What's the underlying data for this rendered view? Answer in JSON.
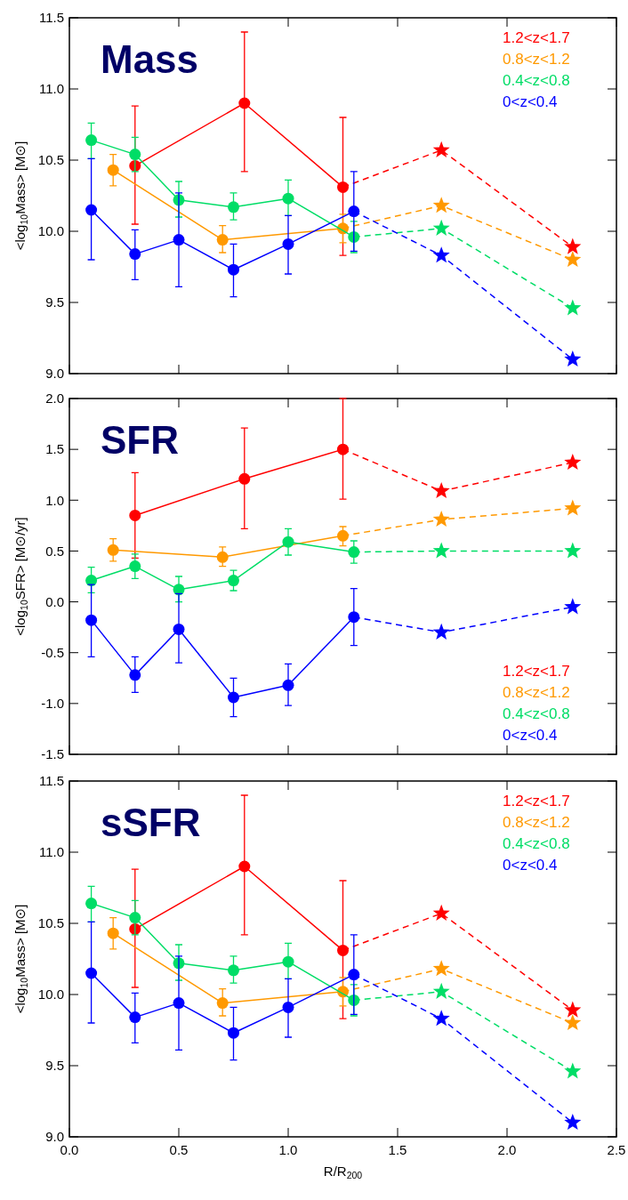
{
  "chart_data": [
    {
      "type": "line",
      "title": "Mass",
      "ylabel": "<log$_{10}$Mass> [M⊙]",
      "xlim": [
        0,
        2.5
      ],
      "xticks": [
        {
          "value": 0,
          "label": null
        },
        {
          "value": 0.5,
          "label": null
        },
        {
          "value": 1,
          "label": null
        },
        {
          "value": 1.5,
          "label": null
        },
        {
          "value": 2,
          "label": null
        },
        {
          "value": 2.5,
          "label": null
        }
      ],
      "ylim": [
        9,
        11.5
      ],
      "yticks": [
        {
          "value": 9,
          "label": "9.0"
        },
        {
          "value": 9.5,
          "label": "9.5"
        },
        {
          "value": 10,
          "label": "10.0"
        },
        {
          "value": 10.5,
          "label": "10.5"
        },
        {
          "value": 11,
          "label": "11.0"
        },
        {
          "value": 11.5,
          "label": "11.5"
        }
      ],
      "tick_labels": "y",
      "legend": "top right",
      "marker": "circle",
      "line_style": "solid",
      "grid": false,
      "series": [
        {
          "name": "1.2<z<1.7",
          "color": "#ff0000",
          "x": [
            0.3,
            0.8,
            1.25
          ],
          "values": [
            10.46,
            10.9,
            10.31
          ],
          "errors": [
            [
              10.05,
              10.88
            ],
            [
              10.42,
              11.4
            ],
            [
              9.83,
              10.8
            ]
          ]
        },
        {
          "color": "#ff0000",
          "x": [
            1.25,
            1.7,
            2.3
          ],
          "values": [
            10.31,
            10.57,
            9.89
          ],
          "marker": "star",
          "line_style": "dashed"
        },
        {
          "name": "0.8<z<1.2",
          "color": "#ff9900",
          "x": [
            0.2,
            0.7,
            1.25
          ],
          "values": [
            10.43,
            9.94,
            10.02
          ],
          "errors": [
            [
              10.32,
              10.54
            ],
            [
              9.85,
              10.04
            ],
            [
              9.92,
              10.12
            ]
          ]
        },
        {
          "color": "#ff9900",
          "x": [
            1.25,
            1.7,
            2.3
          ],
          "values": [
            10.02,
            10.18,
            9.8
          ],
          "marker": "star",
          "line_style": "dashed"
        },
        {
          "name": "0.4<z<0.8",
          "color": "#00dd66",
          "x": [
            0.1,
            0.3,
            0.5,
            0.75,
            1.0,
            1.3
          ],
          "values": [
            10.64,
            10.54,
            10.22,
            10.17,
            10.23,
            9.96
          ],
          "errors": [
            [
              10.51,
              10.76
            ],
            [
              10.42,
              10.66
            ],
            [
              10.1,
              10.35
            ],
            [
              10.08,
              10.27
            ],
            [
              10.11,
              10.36
            ],
            [
              9.85,
              10.07
            ]
          ]
        },
        {
          "color": "#00dd66",
          "x": [
            1.3,
            1.7,
            2.3
          ],
          "values": [
            9.96,
            10.02,
            9.46
          ],
          "marker": "star",
          "line_style": "dashed"
        },
        {
          "name": "0<z<0.4",
          "color": "#0000ff",
          "x": [
            0.1,
            0.3,
            0.5,
            0.75,
            1.0,
            1.3
          ],
          "values": [
            10.15,
            9.84,
            9.94,
            9.73,
            9.91,
            10.14
          ],
          "errors": [
            [
              9.8,
              10.51
            ],
            [
              9.66,
              10.01
            ],
            [
              9.61,
              10.27
            ],
            [
              9.54,
              9.91
            ],
            [
              9.7,
              10.11
            ],
            [
              9.86,
              10.42
            ]
          ]
        },
        {
          "color": "#0000ff",
          "x": [
            1.3,
            1.7,
            2.3
          ],
          "values": [
            10.14,
            9.83,
            9.1
          ],
          "marker": "star",
          "line_style": "dashed"
        }
      ]
    },
    {
      "type": "line",
      "title": "SFR",
      "ylabel": "<log$_{10}$SFR> [M⊙/yr]",
      "xlim": [
        0,
        2.5
      ],
      "xticks": [
        {
          "value": 0,
          "label": null
        },
        {
          "value": 0.5,
          "label": null
        },
        {
          "value": 1,
          "label": null
        },
        {
          "value": 1.5,
          "label": null
        },
        {
          "value": 2,
          "label": null
        },
        {
          "value": 2.5,
          "label": null
        }
      ],
      "ylim": [
        -1.5,
        2
      ],
      "yticks": [
        {
          "value": -1.5,
          "label": "-1.5"
        },
        {
          "value": -1,
          "label": "-1.0"
        },
        {
          "value": -0.5,
          "label": "-0.5"
        },
        {
          "value": 0,
          "label": "0.0"
        },
        {
          "value": 0.5,
          "label": "0.5"
        },
        {
          "value": 1,
          "label": "1.0"
        },
        {
          "value": 1.5,
          "label": "1.5"
        },
        {
          "value": 2,
          "label": "2.0"
        }
      ],
      "tick_labels": "y",
      "legend": "bottom right",
      "marker": "circle",
      "line_style": "solid",
      "grid": false,
      "series": [
        {
          "name": "1.2<z<1.7",
          "color": "#ff0000",
          "x": [
            0.3,
            0.8,
            1.25
          ],
          "values": [
            0.85,
            1.21,
            1.5
          ],
          "errors": [
            [
              0.43,
              1.27
            ],
            [
              0.72,
              1.71
            ],
            [
              1.01,
              2.0
            ]
          ]
        },
        {
          "color": "#ff0000",
          "x": [
            1.25,
            1.7,
            2.3
          ],
          "values": [
            1.5,
            1.09,
            1.37
          ],
          "marker": "star",
          "line_style": "dashed"
        },
        {
          "name": "0.8<z<1.2",
          "color": "#ff9900",
          "x": [
            0.2,
            0.7,
            1.25
          ],
          "values": [
            0.51,
            0.44,
            0.65
          ],
          "errors": [
            [
              0.4,
              0.62
            ],
            [
              0.35,
              0.54
            ],
            [
              0.55,
              0.74
            ]
          ]
        },
        {
          "color": "#ff9900",
          "x": [
            1.25,
            1.7,
            2.3
          ],
          "values": [
            0.65,
            0.81,
            0.92
          ],
          "marker": "star",
          "line_style": "dashed"
        },
        {
          "name": "0.4<z<0.8",
          "color": "#00dd66",
          "x": [
            0.1,
            0.3,
            0.5,
            0.75,
            1.0,
            1.3
          ],
          "values": [
            0.21,
            0.35,
            0.12,
            0.21,
            0.59,
            0.49
          ],
          "errors": [
            [
              0.09,
              0.34
            ],
            [
              0.23,
              0.47
            ],
            [
              0.0,
              0.25
            ],
            [
              0.11,
              0.31
            ],
            [
              0.46,
              0.72
            ],
            [
              0.38,
              0.6
            ]
          ]
        },
        {
          "color": "#00dd66",
          "x": [
            1.3,
            1.7,
            2.3
          ],
          "values": [
            0.49,
            0.5,
            0.5
          ],
          "marker": "star",
          "line_style": "dashed"
        },
        {
          "name": "0<z<0.4",
          "color": "#0000ff",
          "x": [
            0.1,
            0.3,
            0.5,
            0.75,
            1.0,
            1.3
          ],
          "values": [
            -0.18,
            -0.72,
            -0.27,
            -0.94,
            -0.82,
            -0.15
          ],
          "errors": [
            [
              -0.54,
              0.17
            ],
            [
              -0.89,
              -0.54
            ],
            [
              -0.6,
              0.08
            ],
            [
              -1.13,
              -0.75
            ],
            [
              -1.02,
              -0.61
            ],
            [
              -0.43,
              0.13
            ]
          ]
        },
        {
          "color": "#0000ff",
          "x": [
            1.3,
            1.7,
            2.3
          ],
          "values": [
            -0.15,
            -0.3,
            -0.05
          ],
          "marker": "star",
          "line_style": "dashed"
        }
      ]
    },
    {
      "type": "line",
      "title": "sSFR",
      "ylabel": "<log$_{10}$Mass> [M⊙]",
      "xlabel": "R/R$_{200}$",
      "xlim": [
        0,
        2.5
      ],
      "xticks": [
        {
          "value": 0,
          "label": "0.0"
        },
        {
          "value": 0.5,
          "label": "0.5"
        },
        {
          "value": 1,
          "label": "1.0"
        },
        {
          "value": 1.5,
          "label": "1.5"
        },
        {
          "value": 2,
          "label": "2.0"
        },
        {
          "value": 2.5,
          "label": "2.5"
        }
      ],
      "ylim": [
        9,
        11.5
      ],
      "yticks": [
        {
          "value": 9,
          "label": "9.0"
        },
        {
          "value": 9.5,
          "label": "9.5"
        },
        {
          "value": 10,
          "label": "10.0"
        },
        {
          "value": 10.5,
          "label": "10.5"
        },
        {
          "value": 11,
          "label": "11.0"
        },
        {
          "value": 11.5,
          "label": "11.5"
        }
      ],
      "legend": "top right",
      "marker": "circle",
      "line_style": "solid",
      "grid": false,
      "series": [
        {
          "name": "1.2<z<1.7",
          "color": "#ff0000",
          "x": [
            0.3,
            0.8,
            1.25
          ],
          "values": [
            10.46,
            10.9,
            10.31
          ],
          "errors": [
            [
              10.05,
              10.88
            ],
            [
              10.42,
              11.4
            ],
            [
              9.83,
              10.8
            ]
          ]
        },
        {
          "color": "#ff0000",
          "x": [
            1.25,
            1.7,
            2.3
          ],
          "values": [
            10.31,
            10.57,
            9.89
          ],
          "marker": "star",
          "line_style": "dashed"
        },
        {
          "name": "0.8<z<1.2",
          "color": "#ff9900",
          "x": [
            0.2,
            0.7,
            1.25
          ],
          "values": [
            10.43,
            9.94,
            10.02
          ],
          "errors": [
            [
              10.32,
              10.54
            ],
            [
              9.85,
              10.04
            ],
            [
              9.92,
              10.12
            ]
          ]
        },
        {
          "color": "#ff9900",
          "x": [
            1.25,
            1.7,
            2.3
          ],
          "values": [
            10.02,
            10.18,
            9.8
          ],
          "marker": "star",
          "line_style": "dashed"
        },
        {
          "name": "0.4<z<0.8",
          "color": "#00dd66",
          "x": [
            0.1,
            0.3,
            0.5,
            0.75,
            1.0,
            1.3
          ],
          "values": [
            10.64,
            10.54,
            10.22,
            10.17,
            10.23,
            9.96
          ],
          "errors": [
            [
              10.51,
              10.76
            ],
            [
              10.42,
              10.66
            ],
            [
              10.1,
              10.35
            ],
            [
              10.08,
              10.27
            ],
            [
              10.11,
              10.36
            ],
            [
              9.85,
              10.07
            ]
          ]
        },
        {
          "color": "#00dd66",
          "x": [
            1.3,
            1.7,
            2.3
          ],
          "values": [
            9.96,
            10.02,
            9.46
          ],
          "marker": "star",
          "line_style": "dashed"
        },
        {
          "name": "0<z<0.4",
          "color": "#0000ff",
          "x": [
            0.1,
            0.3,
            0.5,
            0.75,
            1.0,
            1.3
          ],
          "values": [
            10.15,
            9.84,
            9.94,
            9.73,
            9.91,
            10.14
          ],
          "errors": [
            [
              9.8,
              10.51
            ],
            [
              9.66,
              10.01
            ],
            [
              9.61,
              10.27
            ],
            [
              9.54,
              9.91
            ],
            [
              9.7,
              10.11
            ],
            [
              9.86,
              10.42
            ]
          ]
        },
        {
          "color": "#0000ff",
          "x": [
            1.3,
            1.7,
            2.3
          ],
          "values": [
            10.14,
            9.83,
            9.1
          ],
          "marker": "star",
          "line_style": "dashed"
        }
      ]
    }
  ]
}
